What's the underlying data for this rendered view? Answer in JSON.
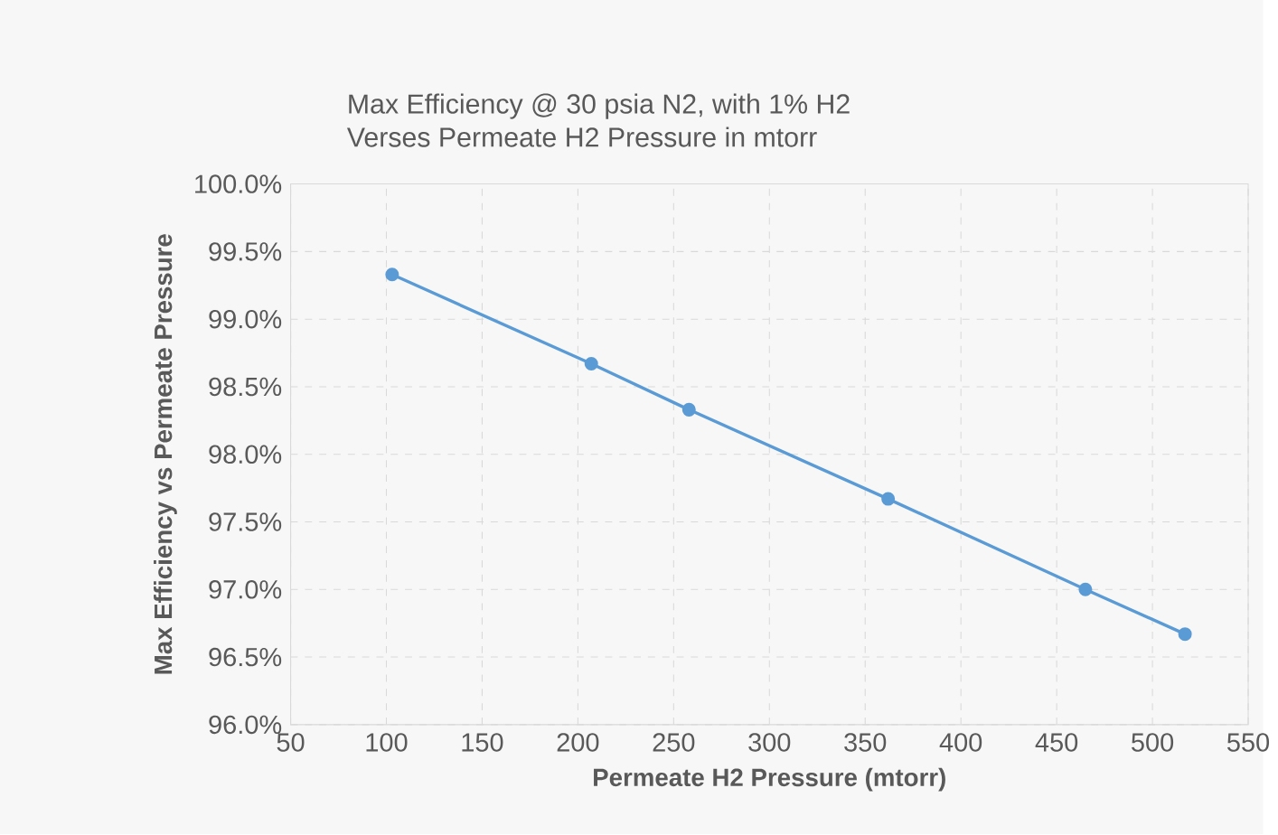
{
  "chart_data": {
    "type": "line",
    "title": "Max Efficiency @ 30 psia N2, with 1% H2",
    "subtitle": "Verses Permeate H2 Pressure in mtorr",
    "xlabel": "Permeate H2 Pressure (mtorr)",
    "ylabel": "Max Efficiency vs Permeate Pressure",
    "x": [
      103,
      207,
      258,
      362,
      465,
      517
    ],
    "series": [
      {
        "color": "#5b9bd5",
        "values": [
          99.33,
          98.67,
          98.33,
          97.67,
          97.0,
          96.67
        ]
      }
    ],
    "xlim": [
      50,
      550
    ],
    "xticks": [
      50,
      100,
      150,
      200,
      250,
      300,
      350,
      400,
      450,
      500,
      550
    ],
    "ylim": [
      96.0,
      100.0
    ],
    "yticks": [
      {
        "value": 96.0,
        "label": "96.0%"
      },
      {
        "value": 96.5,
        "label": "96.5%"
      },
      {
        "value": 97.0,
        "label": "97.0%"
      },
      {
        "value": 97.5,
        "label": "97.5%"
      },
      {
        "value": 98.0,
        "label": "98.0%"
      },
      {
        "value": 98.5,
        "label": "98.5%"
      },
      {
        "value": 99.0,
        "label": "99.0%"
      },
      {
        "value": 99.5,
        "label": "99.5%"
      },
      {
        "value": 100.0,
        "label": "100.0%"
      }
    ],
    "grid": true,
    "marker": "circle",
    "line_style": "solid",
    "legend": false
  }
}
